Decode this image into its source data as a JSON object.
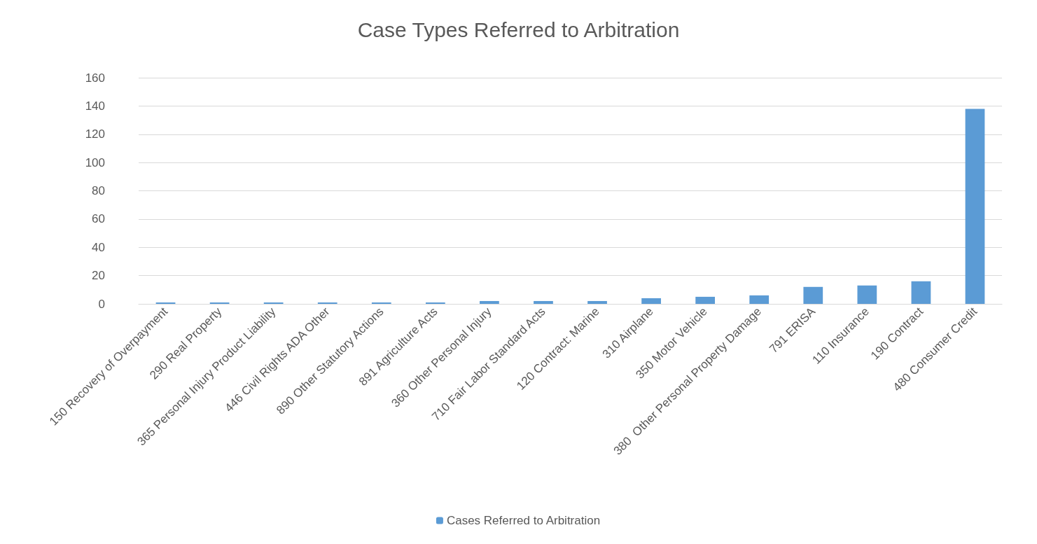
{
  "chart_data": {
    "type": "bar",
    "title": "Case Types Referred to Arbitration",
    "categories": [
      "150 Recovery of Overpayment",
      "290 Real Property",
      "365 Personal Injury Product Liability",
      "446 Civil Rights ADA Other",
      "890 Other Statutory Actions",
      "891 Agriculture Acts",
      "360 Other Personal Injury",
      "710 Fair Labor Standard Acts",
      "120 Contract: Marine",
      "310 Airplane",
      "350 Motor Vehicle",
      "380  Other Personal Property Damage",
      "791 ERISA",
      "110 Insurance",
      "190 Contract",
      "480 Consumer Credit"
    ],
    "series": [
      {
        "name": "Cases Referred to Arbitration",
        "color": "#5b9bd5",
        "values": [
          1,
          1,
          1,
          1,
          1,
          1,
          2,
          2,
          2,
          4,
          5,
          6,
          12,
          13,
          16,
          138
        ]
      }
    ],
    "ylim": [
      0,
      160
    ],
    "yticks": [
      0,
      20,
      40,
      60,
      80,
      100,
      120,
      140,
      160
    ],
    "grid": "y",
    "legend": "bottom"
  }
}
